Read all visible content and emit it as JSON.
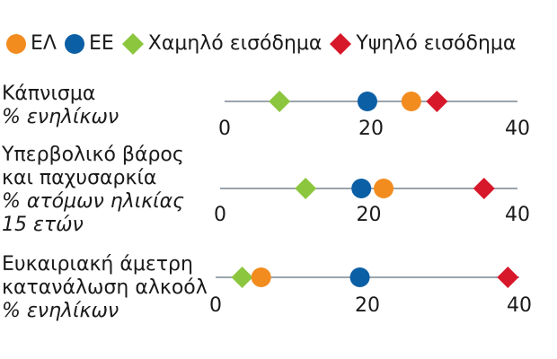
{
  "legend": {
    "items": [
      {
        "label": "ΕΛ",
        "color": "#f28c1e",
        "shape": "circle"
      },
      {
        "label": "ΕΕ",
        "color": "#0b5fa5",
        "shape": "circle"
      },
      {
        "label": "Χαμηλό εισόδημα",
        "color": "#8cc63f",
        "shape": "diamond"
      },
      {
        "label": "Υψηλό εισόδημα",
        "color": "#d7182a",
        "shape": "diamond"
      }
    ]
  },
  "chart_data": {
    "type": "scatter",
    "xlim": [
      0,
      40
    ],
    "ticks": [
      "0",
      "20",
      "40"
    ],
    "rows": [
      {
        "label_lines": [
          "Κάπνισμα"
        ],
        "sub_lines": [
          "% ενηλίκων"
        ],
        "values": {
          "el": 25.5,
          "eu": 19.5,
          "low": 7.5,
          "high": 29.0
        }
      },
      {
        "label_lines": [
          "Υπερβολικό βάρος",
          "και παχυσαρκία"
        ],
        "sub_lines": [
          "% ατόμων ηλικίας",
          "15 ετών"
        ],
        "values": {
          "el": 22.0,
          "eu": 19.0,
          "low": 11.5,
          "high": 35.5
        }
      },
      {
        "label_lines": [
          "Ευκαιριακή άμετρη",
          "κατανάλωση αλκοόλ"
        ],
        "sub_lines": [
          "% ενηλίκων"
        ],
        "values": {
          "el": 6.0,
          "eu": 19.0,
          "low": 3.5,
          "high": 38.5
        }
      }
    ]
  }
}
